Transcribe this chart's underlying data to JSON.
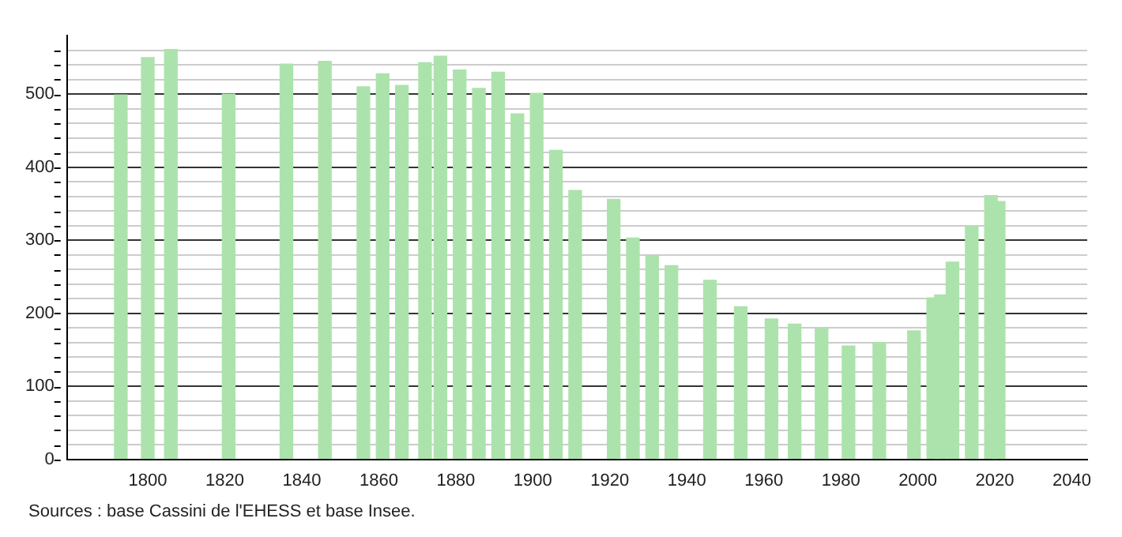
{
  "chart_data": {
    "type": "bar",
    "color": "#ace3ac",
    "x": [
      1793,
      1800,
      1806,
      1821,
      1836,
      1846,
      1856,
      1861,
      1866,
      1872,
      1876,
      1881,
      1886,
      1891,
      1896,
      1901,
      1906,
      1911,
      1921,
      1926,
      1931,
      1936,
      1946,
      1954,
      1962,
      1968,
      1975,
      1982,
      1990,
      1999,
      2004,
      2006,
      2009,
      2014,
      2019,
      2021
    ],
    "values": [
      499,
      550,
      561,
      500,
      541,
      545,
      510,
      528,
      512,
      543,
      552,
      533,
      508,
      530,
      473,
      501,
      423,
      368,
      356,
      303,
      279,
      265,
      245,
      209,
      192,
      185,
      179,
      155,
      160,
      176,
      221,
      225,
      270,
      320,
      361,
      353
    ],
    "xlim": [
      1779,
      2044
    ],
    "xticks": [
      1800,
      1820,
      1840,
      1860,
      1880,
      1900,
      1920,
      1940,
      1960,
      1980,
      2000,
      2020,
      2040
    ],
    "ylim": [
      0,
      580
    ],
    "yticks": [
      0,
      {
        "value": 20,
        "label": null
      },
      {
        "value": 40,
        "label": null
      },
      {
        "value": 60,
        "label": null
      },
      {
        "value": 80,
        "label": null
      },
      100,
      {
        "value": 120,
        "label": null
      },
      {
        "value": 140,
        "label": null
      },
      {
        "value": 160,
        "label": null
      },
      {
        "value": 180,
        "label": null
      },
      200,
      {
        "value": 220,
        "label": null
      },
      {
        "value": 240,
        "label": null
      },
      {
        "value": 260,
        "label": null
      },
      {
        "value": 280,
        "label": null
      },
      300,
      {
        "value": 320,
        "label": null
      },
      {
        "value": 340,
        "label": null
      },
      {
        "value": 360,
        "label": null
      },
      {
        "value": 380,
        "label": null
      },
      400,
      {
        "value": 420,
        "label": null
      },
      {
        "value": 440,
        "label": null
      },
      {
        "value": 460,
        "label": null
      },
      {
        "value": 480,
        "label": null
      },
      500,
      {
        "value": 520,
        "label": null
      },
      {
        "value": 540,
        "label": null
      },
      {
        "value": 560,
        "label": null
      }
    ],
    "grid": true,
    "legend": false,
    "annotations": [
      "Sources : base Cassini de l'EHESS et base Insee."
    ]
  }
}
